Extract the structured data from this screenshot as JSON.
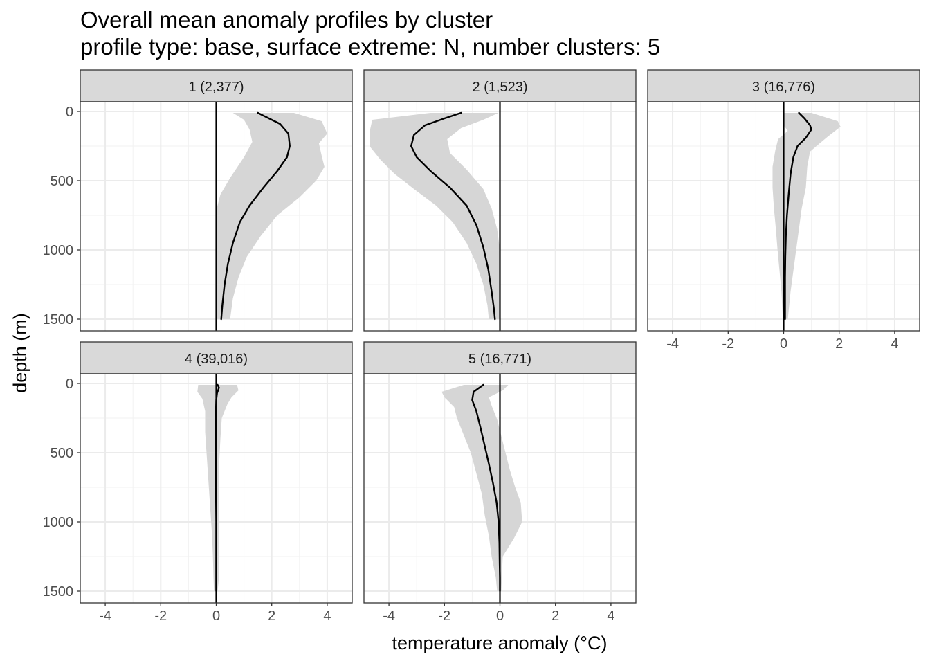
{
  "chart_data": {
    "type": "line",
    "title": "Overall mean anomaly profiles by cluster",
    "subtitle": "profile type: base, surface extreme: N, number clusters: 5",
    "xlabel": "temperature anomaly (°C)",
    "ylabel": "depth (m)",
    "xlim": [
      -4.9,
      4.9
    ],
    "ylim": [
      1585,
      -70
    ],
    "x_ticks": [
      -4,
      -2,
      0,
      2,
      4
    ],
    "x_tick_labels": [
      "-4",
      "-2",
      "0",
      "2",
      "4"
    ],
    "y_ticks": [
      0,
      500,
      1000,
      1500
    ],
    "y_tick_labels": [
      "0",
      "500",
      "1000",
      "1500"
    ],
    "grid": true,
    "reference_line_x": 0,
    "panels": [
      {
        "label": "1 (2,377)",
        "mean": [
          [
            1.5,
            10
          ],
          [
            1.9,
            50
          ],
          [
            2.3,
            90
          ],
          [
            2.6,
            160
          ],
          [
            2.65,
            250
          ],
          [
            2.55,
            330
          ],
          [
            2.2,
            430
          ],
          [
            1.7,
            550
          ],
          [
            1.2,
            680
          ],
          [
            0.85,
            800
          ],
          [
            0.6,
            950
          ],
          [
            0.42,
            1100
          ],
          [
            0.3,
            1250
          ],
          [
            0.22,
            1400
          ],
          [
            0.18,
            1500
          ]
        ],
        "upper": [
          [
            2.8,
            10
          ],
          [
            3.8,
            70
          ],
          [
            4.0,
            160
          ],
          [
            3.7,
            230
          ],
          [
            3.8,
            320
          ],
          [
            3.9,
            400
          ],
          [
            3.6,
            500
          ],
          [
            3.0,
            620
          ],
          [
            2.2,
            750
          ],
          [
            1.6,
            900
          ],
          [
            1.1,
            1050
          ],
          [
            0.8,
            1200
          ],
          [
            0.6,
            1350
          ],
          [
            0.5,
            1500
          ]
        ],
        "lower": [
          [
            0.6,
            10
          ],
          [
            1.0,
            60
          ],
          [
            1.2,
            130
          ],
          [
            1.3,
            220
          ],
          [
            1.0,
            330
          ],
          [
            0.5,
            480
          ],
          [
            0.15,
            600
          ],
          [
            0.02,
            700
          ],
          [
            0.0,
            850
          ],
          [
            0.0,
            1000
          ],
          [
            0.0,
            1200
          ],
          [
            0.0,
            1500
          ]
        ]
      },
      {
        "label": "2 (1,523)",
        "mean": [
          [
            -1.4,
            10
          ],
          [
            -2.0,
            50
          ],
          [
            -2.7,
            100
          ],
          [
            -3.1,
            170
          ],
          [
            -3.2,
            250
          ],
          [
            -3.0,
            330
          ],
          [
            -2.5,
            430
          ],
          [
            -1.8,
            550
          ],
          [
            -1.2,
            680
          ],
          [
            -0.85,
            820
          ],
          [
            -0.6,
            980
          ],
          [
            -0.42,
            1140
          ],
          [
            -0.3,
            1300
          ],
          [
            -0.22,
            1420
          ],
          [
            -0.18,
            1500
          ]
        ],
        "upper": [
          [
            -0.05,
            10
          ],
          [
            -0.6,
            60
          ],
          [
            -1.4,
            120
          ],
          [
            -1.9,
            200
          ],
          [
            -1.8,
            300
          ],
          [
            -1.2,
            420
          ],
          [
            -0.6,
            560
          ],
          [
            -0.3,
            700
          ],
          [
            -0.1,
            850
          ],
          [
            0.0,
            1000
          ],
          [
            0.0,
            1200
          ],
          [
            0.0,
            1500
          ]
        ],
        "lower": [
          [
            -2.5,
            10
          ],
          [
            -4.6,
            60
          ],
          [
            -4.7,
            150
          ],
          [
            -4.7,
            250
          ],
          [
            -4.3,
            350
          ],
          [
            -3.8,
            450
          ],
          [
            -3.1,
            560
          ],
          [
            -2.3,
            680
          ],
          [
            -1.7,
            800
          ],
          [
            -1.2,
            950
          ],
          [
            -0.85,
            1100
          ],
          [
            -0.6,
            1250
          ],
          [
            -0.45,
            1400
          ],
          [
            -0.4,
            1500
          ]
        ]
      },
      {
        "label": "3 (16,776)",
        "mean": [
          [
            0.55,
            10
          ],
          [
            0.75,
            50
          ],
          [
            0.95,
            100
          ],
          [
            1.0,
            130
          ],
          [
            0.8,
            190
          ],
          [
            0.5,
            250
          ],
          [
            0.35,
            330
          ],
          [
            0.25,
            450
          ],
          [
            0.18,
            600
          ],
          [
            0.12,
            750
          ],
          [
            0.08,
            900
          ],
          [
            0.06,
            1050
          ],
          [
            0.05,
            1200
          ],
          [
            0.05,
            1350
          ],
          [
            0.05,
            1500
          ]
        ],
        "upper": [
          [
            1.0,
            10
          ],
          [
            1.95,
            70
          ],
          [
            2.05,
            110
          ],
          [
            1.6,
            180
          ],
          [
            1.3,
            230
          ],
          [
            0.95,
            290
          ],
          [
            0.85,
            400
          ],
          [
            0.8,
            550
          ],
          [
            0.65,
            700
          ],
          [
            0.55,
            850
          ],
          [
            0.45,
            1000
          ],
          [
            0.35,
            1150
          ],
          [
            0.25,
            1300
          ],
          [
            0.15,
            1500
          ]
        ],
        "lower": [
          [
            0.0,
            10
          ],
          [
            0.0,
            60
          ],
          [
            0.0,
            100
          ],
          [
            0.15,
            140
          ],
          [
            -0.2,
            200
          ],
          [
            -0.3,
            280
          ],
          [
            -0.4,
            400
          ],
          [
            -0.4,
            550
          ],
          [
            -0.35,
            700
          ],
          [
            -0.28,
            850
          ],
          [
            -0.22,
            1000
          ],
          [
            -0.15,
            1150
          ],
          [
            -0.08,
            1300
          ],
          [
            -0.03,
            1500
          ]
        ]
      },
      {
        "label": "4 (39,016)",
        "mean": [
          [
            0.05,
            10
          ],
          [
            0.1,
            30
          ],
          [
            0.03,
            70
          ],
          [
            0.0,
            120
          ],
          [
            -0.02,
            250
          ],
          [
            -0.03,
            400
          ],
          [
            -0.02,
            600
          ],
          [
            -0.01,
            800
          ],
          [
            0.0,
            1000
          ],
          [
            0.0,
            1200
          ],
          [
            0.0,
            1400
          ],
          [
            0.0,
            1500
          ]
        ],
        "upper": [
          [
            0.75,
            10
          ],
          [
            0.8,
            50
          ],
          [
            0.55,
            100
          ],
          [
            0.4,
            150
          ],
          [
            0.2,
            250
          ],
          [
            0.15,
            400
          ],
          [
            0.1,
            600
          ],
          [
            0.1,
            800
          ],
          [
            0.1,
            1000
          ],
          [
            0.1,
            1200
          ],
          [
            0.1,
            1400
          ],
          [
            0.05,
            1500
          ]
        ],
        "lower": [
          [
            -0.65,
            10
          ],
          [
            -0.68,
            60
          ],
          [
            -0.5,
            110
          ],
          [
            -0.4,
            200
          ],
          [
            -0.4,
            350
          ],
          [
            -0.35,
            500
          ],
          [
            -0.3,
            650
          ],
          [
            -0.25,
            800
          ],
          [
            -0.2,
            950
          ],
          [
            -0.15,
            1100
          ],
          [
            -0.12,
            1250
          ],
          [
            -0.1,
            1400
          ],
          [
            -0.08,
            1500
          ]
        ]
      },
      {
        "label": "5 (16,771)",
        "mean": [
          [
            -0.6,
            10
          ],
          [
            -0.95,
            60
          ],
          [
            -1.0,
            120
          ],
          [
            -0.85,
            200
          ],
          [
            -0.7,
            320
          ],
          [
            -0.55,
            450
          ],
          [
            -0.4,
            580
          ],
          [
            -0.25,
            720
          ],
          [
            -0.12,
            860
          ],
          [
            -0.05,
            1000
          ],
          [
            -0.02,
            1150
          ],
          [
            -0.01,
            1300
          ],
          [
            0.0,
            1400
          ],
          [
            0.0,
            1500
          ]
        ],
        "upper": [
          [
            0.3,
            10
          ],
          [
            0.1,
            50
          ],
          [
            -0.4,
            100
          ],
          [
            -0.3,
            160
          ],
          [
            -0.1,
            260
          ],
          [
            0.05,
            380
          ],
          [
            0.2,
            500
          ],
          [
            0.35,
            620
          ],
          [
            0.55,
            750
          ],
          [
            0.75,
            860
          ],
          [
            0.8,
            1000
          ],
          [
            0.5,
            1120
          ],
          [
            0.1,
            1250
          ],
          [
            0.05,
            1500
          ]
        ],
        "lower": [
          [
            -1.3,
            10
          ],
          [
            -2.1,
            60
          ],
          [
            -2.0,
            100
          ],
          [
            -1.65,
            170
          ],
          [
            -1.55,
            250
          ],
          [
            -1.35,
            350
          ],
          [
            -1.05,
            500
          ],
          [
            -0.85,
            650
          ],
          [
            -0.65,
            800
          ],
          [
            -0.55,
            950
          ],
          [
            -0.4,
            1100
          ],
          [
            -0.3,
            1250
          ],
          [
            -0.15,
            1400
          ],
          [
            -0.1,
            1500
          ]
        ]
      }
    ]
  }
}
